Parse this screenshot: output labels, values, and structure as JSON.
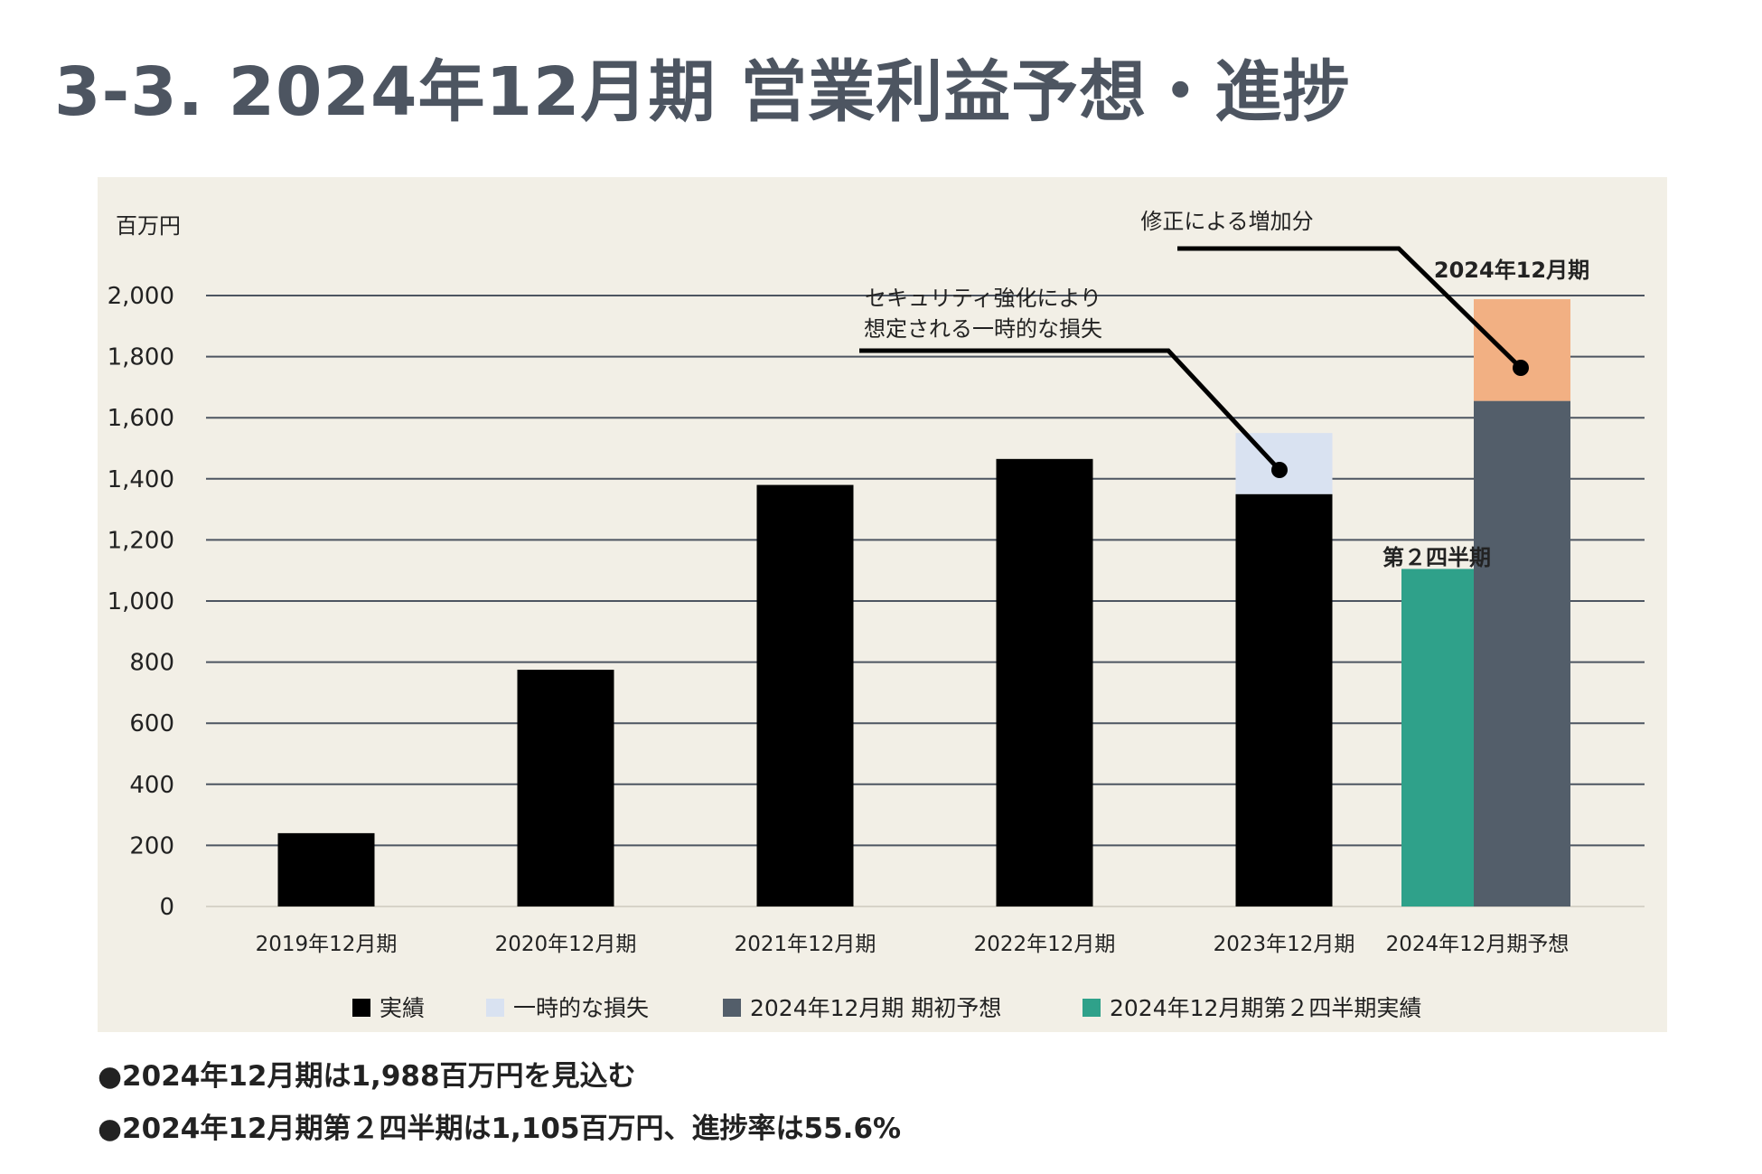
{
  "page": {
    "title": "3-3. 2024年12月期 営業利益予想・進捗",
    "bullets": [
      "●2024年12月期は1,988百万円を見込む",
      "●2024年12月期第２四半期は1,105百万円、進捗率は55.6%"
    ]
  },
  "chart_data": {
    "type": "bar",
    "title": "",
    "ylabel": "百万円",
    "ylim": [
      0,
      2000
    ],
    "yticks": [
      0,
      200,
      400,
      600,
      800,
      1000,
      1200,
      1400,
      1600,
      1800,
      2000
    ],
    "ytick_labels": [
      "0",
      "200",
      "400",
      "600",
      "800",
      "1,000",
      "1,200",
      "1,400",
      "1,600",
      "1,800",
      "2,000"
    ],
    "grid": true,
    "legend_position": "bottom",
    "categories": [
      "2019年12月期",
      "2020年12月期",
      "2021年12月期",
      "2022年12月期",
      "2023年12月期",
      "2024年12月期予想"
    ],
    "series": [
      {
        "name": "実績",
        "color": "#000000",
        "values": [
          240,
          775,
          1380,
          1465,
          1350,
          null
        ]
      },
      {
        "name": "一時的な損失",
        "color": "#d9e2f1",
        "values": [
          null,
          null,
          null,
          null,
          200,
          null
        ]
      },
      {
        "name": "2024年12月期 期初予想",
        "color": "#535e6a",
        "values": [
          null,
          null,
          null,
          null,
          null,
          1655
        ]
      },
      {
        "name": "2024年12月期第２四半期実績",
        "color": "#2fa18a",
        "values": [
          null,
          null,
          null,
          null,
          null,
          1105
        ]
      }
    ],
    "revision_increase": {
      "value": 333,
      "color": "#f2b083"
    },
    "annotations": {
      "loss_note": [
        "セキュリティ強化により",
        "想定される一時的な損失"
      ],
      "revision_note": "修正による増加分",
      "q2_label": "第２四半期",
      "fy2024_label": "2024年12月期"
    },
    "colors": {
      "grid": "#4d5561",
      "background": "#f2efe6"
    }
  }
}
